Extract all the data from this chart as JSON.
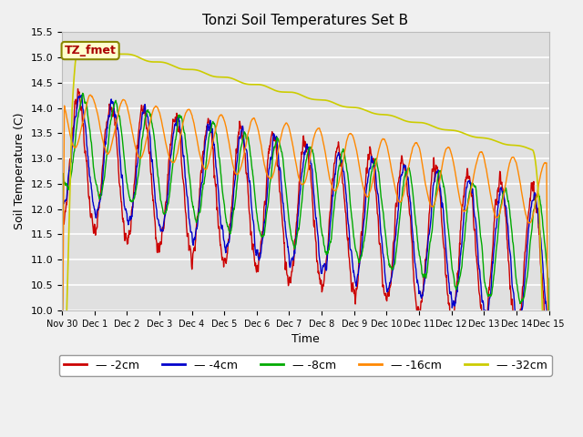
{
  "title": "Tonzi Soil Temperatures Set B",
  "xlabel": "Time",
  "ylabel": "Soil Temperature (C)",
  "ylim": [
    10.0,
    15.5
  ],
  "yticks": [
    10.0,
    10.5,
    11.0,
    11.5,
    12.0,
    12.5,
    13.0,
    13.5,
    14.0,
    14.5,
    15.0,
    15.5
  ],
  "xtick_labels": [
    "Nov 30",
    "Dec 1",
    "Dec 2",
    "Dec 3",
    "Dec 4",
    "Dec 5",
    "Dec 6",
    "Dec 7",
    "Dec 8",
    "Dec 9",
    "Dec 10",
    "Dec 11",
    "Dec 12",
    "Dec 13",
    "Dec 14",
    "Dec 15"
  ],
  "series": {
    "-2cm": {
      "color": "#cc0000",
      "lw": 1.0
    },
    "-4cm": {
      "color": "#0000cc",
      "lw": 1.0
    },
    "-8cm": {
      "color": "#00aa00",
      "lw": 1.0
    },
    "-16cm": {
      "color": "#ff8800",
      "lw": 1.0
    },
    "-32cm": {
      "color": "#cccc00",
      "lw": 1.2
    }
  },
  "annotation_text": "TZ_fmet",
  "fig_bg": "#f0f0f0",
  "plot_bg": "#e0e0e0"
}
